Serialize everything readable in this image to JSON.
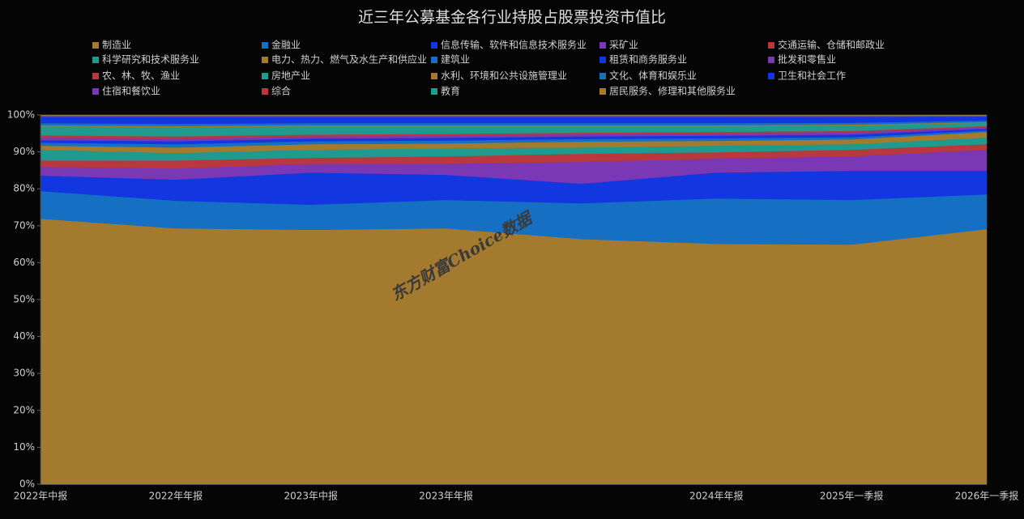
{
  "chart_data": {
    "type": "stacked_area",
    "title": "近三年公募基金各行业持股占股票投资市值比",
    "watermark": "东方财富Choice数据",
    "categories": [
      "2022年中报",
      "2022年年报",
      "2023年中报",
      "2023年年报",
      null,
      "2024年年报",
      "2025年一季报",
      "2026年一季报"
    ],
    "ylim": [
      0,
      100
    ],
    "yticks": [
      {
        "value": 0,
        "label": "0%"
      },
      {
        "value": 10,
        "label": "10%"
      },
      {
        "value": 20,
        "label": "20%"
      },
      {
        "value": 30,
        "label": "30%"
      },
      {
        "value": 40,
        "label": "40%"
      },
      {
        "value": 50,
        "label": "50%"
      },
      {
        "value": 60,
        "label": "60%"
      },
      {
        "value": 70,
        "label": "70%"
      },
      {
        "value": 80,
        "label": "80%"
      },
      {
        "value": 90,
        "label": "90%"
      },
      {
        "value": 100,
        "label": "100%"
      }
    ],
    "series": [
      {
        "name": "制造业",
        "color": "#a47a2e",
        "values": [
          71.9,
          69.3,
          68.9,
          69.3,
          66.4,
          65.1,
          64.9,
          69.1
        ]
      },
      {
        "name": "金融业",
        "color": "#1570c4",
        "values": [
          7.5,
          7.5,
          6.8,
          7.7,
          9.7,
          12.3,
          12.1,
          9.4
        ]
      },
      {
        "name": "信息传输、软件和信息技术服务业",
        "color": "#1236e0",
        "values": [
          4.2,
          5.7,
          8.7,
          6.8,
          5.3,
          7.0,
          7.9,
          6.4
        ]
      },
      {
        "name": "采矿业",
        "color": "#7b38b4",
        "values": [
          2.4,
          3.0,
          2.4,
          3.0,
          5.9,
          3.8,
          3.9,
          5.7
        ]
      },
      {
        "name": "交通运输、仓储和邮政业",
        "color": "#b8383e",
        "values": [
          1.7,
          2.2,
          1.6,
          2.0,
          2.2,
          1.7,
          1.8,
          1.5
        ]
      },
      {
        "name": "科学研究和技术服务业",
        "color": "#1f9a8e",
        "values": [
          2.9,
          2.0,
          2.2,
          2.2,
          1.7,
          1.8,
          1.5,
          1.8
        ]
      },
      {
        "name": "电力、热力、燃气及水生产和供应业",
        "color": "#a47a2e",
        "values": [
          1.1,
          1.5,
          1.5,
          1.3,
          1.6,
          1.3,
          1.3,
          1.5
        ]
      },
      {
        "name": "建筑业",
        "color": "#1570c4",
        "values": [
          0.8,
          0.9,
          0.8,
          0.8,
          0.7,
          0.7,
          0.6,
          0.4
        ]
      },
      {
        "name": "租赁和商务服务业",
        "color": "#1236e0",
        "values": [
          0.7,
          0.8,
          0.7,
          0.7,
          0.7,
          0.7,
          0.7,
          0.5
        ]
      },
      {
        "name": "批发和零售业",
        "color": "#7b38b4",
        "values": [
          0.7,
          0.7,
          0.6,
          0.6,
          0.6,
          0.6,
          0.6,
          0.4
        ]
      },
      {
        "name": "农、林、牧、渔业",
        "color": "#b8383e",
        "values": [
          0.6,
          0.6,
          0.5,
          0.5,
          0.4,
          0.4,
          0.4,
          0.3
        ]
      },
      {
        "name": "房地产业",
        "color": "#1f9a8e",
        "values": [
          2.4,
          2.5,
          2.2,
          2.0,
          1.7,
          1.5,
          1.4,
          0.9
        ]
      },
      {
        "name": "水利、环境和公共设施管理业",
        "color": "#a47a2e",
        "values": [
          0.3,
          0.3,
          0.3,
          0.3,
          0.3,
          0.3,
          0.3,
          0.2
        ]
      },
      {
        "name": "文化、体育和娱乐业",
        "color": "#1570c4",
        "values": [
          0.6,
          0.6,
          0.6,
          0.6,
          0.6,
          0.6,
          0.5,
          0.4
        ]
      },
      {
        "name": "卫生和社会工作",
        "color": "#1236e0",
        "values": [
          1.7,
          1.9,
          1.7,
          1.7,
          1.7,
          1.7,
          1.6,
          1.1
        ]
      },
      {
        "name": "住宿和餐饮业",
        "color": "#7b38b4",
        "values": [
          0.2,
          0.2,
          0.2,
          0.2,
          0.2,
          0.2,
          0.2,
          0.1
        ]
      },
      {
        "name": "综合",
        "color": "#b8383e",
        "values": [
          0.1,
          0.1,
          0.1,
          0.1,
          0.1,
          0.1,
          0.1,
          0.1
        ]
      },
      {
        "name": "教育",
        "color": "#1f9a8e",
        "values": [
          0.1,
          0.1,
          0.1,
          0.1,
          0.1,
          0.1,
          0.1,
          0.1
        ]
      },
      {
        "name": "居民服务、修理和其他服务业",
        "color": "#a47a2e",
        "values": [
          0.1,
          0.1,
          0.1,
          0.1,
          0.1,
          0.1,
          0.1,
          0.1
        ]
      }
    ]
  }
}
